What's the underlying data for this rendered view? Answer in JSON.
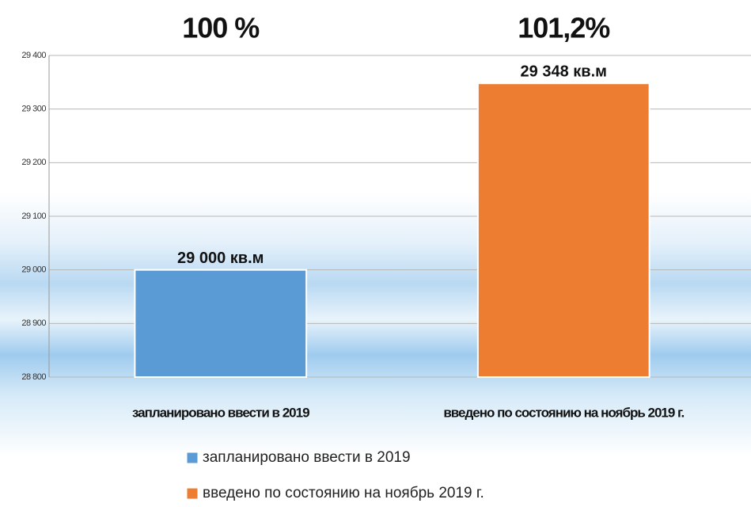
{
  "chart_data": {
    "type": "bar",
    "annotations": [
      "100 %",
      "101,2%"
    ],
    "categories": [
      "запланировано ввести в 2019",
      "введено по состоянию на ноябрь 2019 г."
    ],
    "values": [
      29000,
      29348
    ],
    "value_labels": [
      "29 000 кв.м",
      "29 348 кв.м"
    ],
    "colors": [
      "#5b9bd5",
      "#ed7d31"
    ],
    "ylim": [
      28800,
      29400
    ],
    "yticks": [
      {
        "value": 28800,
        "label": "28 800"
      },
      {
        "value": 28900,
        "label": "28 900"
      },
      {
        "value": 29000,
        "label": "29 000"
      },
      {
        "value": 29100,
        "label": "29 100"
      },
      {
        "value": 29200,
        "label": "29 200"
      },
      {
        "value": 29300,
        "label": "29 300"
      },
      {
        "value": 29400,
        "label": "29 400"
      }
    ],
    "grid": true,
    "legend": "bottom"
  }
}
